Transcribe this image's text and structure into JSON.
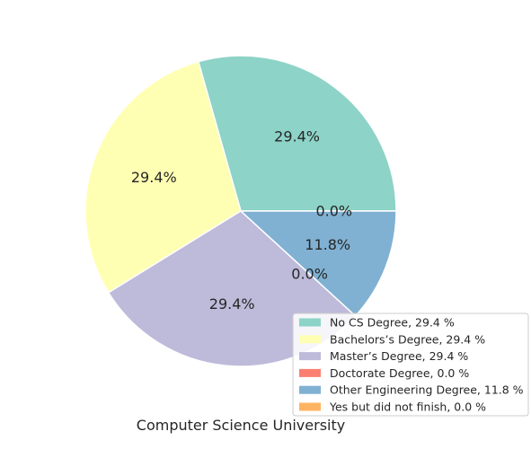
{
  "chart_data": {
    "type": "pie",
    "title": "",
    "xlabel": "Computer Science University",
    "ylabel": "",
    "legend_placement": "lower-right",
    "slices": [
      {
        "label": "No CS Degree",
        "value": 29.4,
        "pct_label": "29.4%",
        "legend_label": "No CS Degree, 29.4 %",
        "color": "#8dd3c7"
      },
      {
        "label": "Bachelors’s Degree",
        "value": 29.4,
        "pct_label": "29.4%",
        "legend_label": "Bachelors’s Degree, 29.4 %",
        "color": "#ffffb3"
      },
      {
        "label": "Master’s Degree",
        "value": 29.4,
        "pct_label": "29.4%",
        "legend_label": "Master’s Degree, 29.4 %",
        "color": "#bebada"
      },
      {
        "label": "Doctorate Degree",
        "value": 0.0,
        "pct_label": "0.0%",
        "legend_label": "Doctorate Degree, 0.0 %",
        "color": "#fb8072"
      },
      {
        "label": "Other Engineering Degree",
        "value": 11.8,
        "pct_label": "11.8%",
        "legend_label": "Other Engineering Degree, 11.8 %",
        "color": "#80b1d3"
      },
      {
        "label": "Yes but did not finish",
        "value": 0.0,
        "pct_label": "0.0%",
        "legend_label": "Yes but did not finish, 0.0 %",
        "color": "#fdb462"
      }
    ]
  }
}
